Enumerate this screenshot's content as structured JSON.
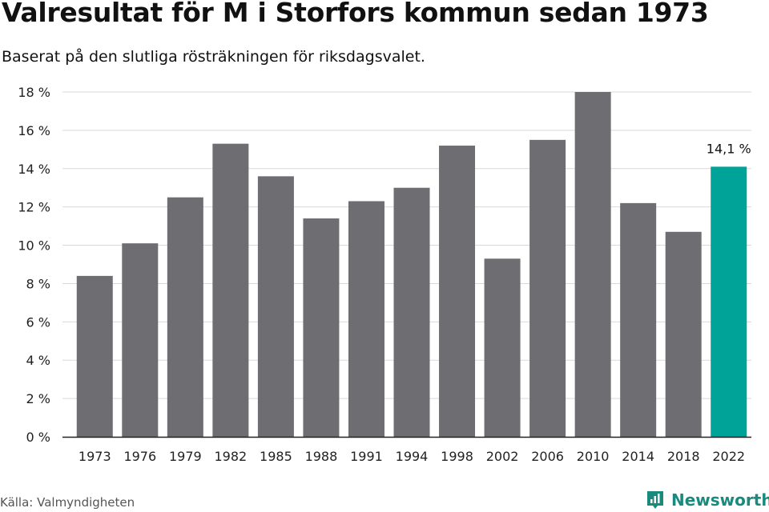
{
  "header": {
    "title": "Valresultat för M i Storfors kommun sedan 1973",
    "subtitle": "Baserat på den slutliga rösträkningen för riksdagsvalet."
  },
  "footer": {
    "source": "Källa: Valmyndigheten",
    "brand": "Newsworthy"
  },
  "colors": {
    "bar": "#6e6d72",
    "highlight": "#00a398",
    "grid": "#d9d9d9",
    "axis": "#222222",
    "brand": "#1a8a7e"
  },
  "chart_data": {
    "type": "bar",
    "title": "Valresultat för M i Storfors kommun sedan 1973",
    "xlabel": "",
    "ylabel": "",
    "categories": [
      "1973",
      "1976",
      "1979",
      "1982",
      "1985",
      "1988",
      "1991",
      "1994",
      "1998",
      "2002",
      "2006",
      "2010",
      "2014",
      "2018",
      "2022"
    ],
    "values": [
      8.4,
      10.1,
      12.5,
      15.3,
      13.6,
      11.4,
      12.3,
      13.0,
      15.2,
      9.3,
      15.5,
      18.0,
      12.2,
      10.7,
      14.1
    ],
    "highlight_index": 14,
    "ylim": [
      0,
      18
    ],
    "yticks": [
      0,
      2,
      4,
      6,
      8,
      10,
      12,
      14,
      16,
      18
    ],
    "ytick_labels": [
      "0 %",
      "2 %",
      "4 %",
      "6 %",
      "8 %",
      "10 %",
      "12 %",
      "14 %",
      "16 %",
      "18 %"
    ],
    "annotations": [
      {
        "category": "2022",
        "text": "14,1 %"
      }
    ],
    "grid": true
  }
}
